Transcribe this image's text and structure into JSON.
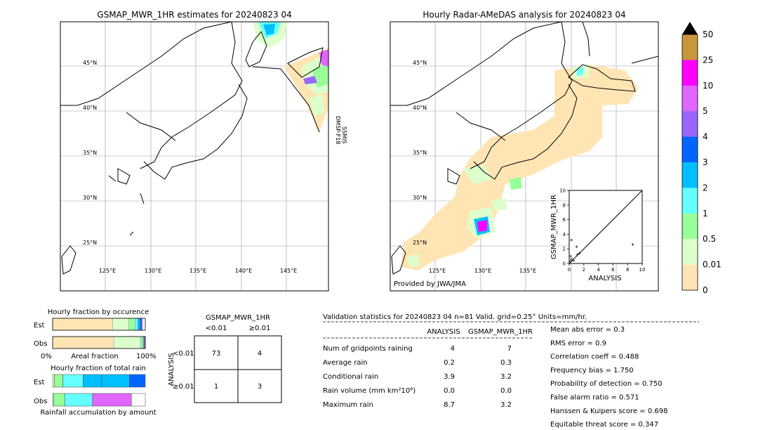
{
  "left_map": {
    "title": "GSMAP_MWR_1HR estimates for 20240823 04",
    "satellite_label_1": "DMSP-F18",
    "satellite_label_2": "SSMIS",
    "lat_labels": [
      "45°N",
      "40°N",
      "35°N",
      "30°N",
      "25°N"
    ],
    "lon_labels": [
      "125°E",
      "130°E",
      "135°E",
      "140°E",
      "145°E"
    ]
  },
  "right_map": {
    "title": "Hourly Radar-AMeDAS analysis for 20240823 04",
    "credit": "Provided by JWA/JMA",
    "lat_labels": [
      "45°N",
      "40°N",
      "35°N",
      "30°N",
      "25°N"
    ],
    "lon_labels": [
      "125°E",
      "130°E",
      "135°E"
    ]
  },
  "colorbar": {
    "labels": [
      "50",
      "25",
      "10",
      "5",
      "4",
      "3",
      "2",
      "1",
      "0.5",
      "0.01",
      "0"
    ],
    "colors": [
      "#c8963c",
      "#ff00ff",
      "#e066ff",
      "#9966ff",
      "#0066ff",
      "#00bfff",
      "#66ffff",
      "#99ff99",
      "#ddffcc",
      "#ffe5b4"
    ]
  },
  "chart_data": [
    {
      "type": "scatter",
      "title": "",
      "xlabel": "ANALYSIS",
      "ylabel": "GSMAP_MWR_1HR",
      "xlim": [
        0,
        10
      ],
      "ylim": [
        0,
        10
      ],
      "ticks": [
        "0",
        "2",
        "4",
        "6",
        "8",
        "10"
      ],
      "points": [
        [
          0.2,
          0.3
        ],
        [
          0.3,
          0.6
        ],
        [
          0.2,
          1.0
        ],
        [
          0.6,
          0.4
        ],
        [
          1.1,
          1.2
        ],
        [
          1.4,
          1.4
        ],
        [
          1.0,
          2.3
        ],
        [
          0.3,
          3.2
        ],
        [
          8.7,
          2.6
        ]
      ]
    },
    {
      "type": "bar",
      "title": "Hourly fraction by occurence",
      "rows": [
        "Est",
        "Obs"
      ],
      "xlabel": "Areal fraction",
      "x_left_label": "0%",
      "x_right_label": "100%",
      "segments": {
        "Est": [
          0.65,
          0.17,
          0.07,
          0.03,
          0.02,
          0.02,
          0.01
        ],
        "Obs": [
          0.66,
          0.29,
          0.02,
          0.01,
          0.005,
          0.005,
          0.01
        ]
      },
      "segment_colors": [
        "#ffe5b4",
        "#ddffcc",
        "#99ff99",
        "#66ffff",
        "#00bfff",
        "#0066ff",
        "#9966ff"
      ]
    },
    {
      "type": "bar",
      "title": "Hourly fraction of total rain",
      "rows": [
        "Est",
        "Obs"
      ],
      "xlabel": "Rainfall accumulation by amount",
      "segments": {
        "Est": [
          0.02,
          0.09,
          0.22,
          0.2,
          0.3,
          0.17
        ],
        "Obs": [
          0.01,
          0.12,
          0.3,
          0.42,
          0.15
        ]
      },
      "segment_colors": {
        "Est": [
          "#ddffcc",
          "#99ff99",
          "#66ffff",
          "#00bfff",
          "#00bfff",
          "#0066ff"
        ],
        "Obs": [
          "#ddffcc",
          "#99ff99",
          "#66ffff",
          "#e066ff",
          "#ffffff"
        ]
      }
    },
    {
      "type": "table",
      "title": "GSMAP_MWR_1HR",
      "col_labels": [
        "<0.01",
        "≥0.01"
      ],
      "row_labels": [
        "<0.01",
        "≥0.01"
      ],
      "side_label": "ANALYSIS",
      "cells": [
        [
          73,
          4
        ],
        [
          1,
          3
        ]
      ]
    }
  ],
  "validation": {
    "header": "Validation statistics for 20240823 04  n=81 Valid. grid=0.25° Units=mm/hr.",
    "col_analysis": "ANALYSIS",
    "col_gsmap": "GSMAP_MWR_1HR",
    "rows": [
      {
        "label": "Num of gridpoints raining",
        "analysis": "4",
        "gsmap": "7"
      },
      {
        "label": "Average rain",
        "analysis": "0.2",
        "gsmap": "0.3"
      },
      {
        "label": "Conditional rain",
        "analysis": "3.9",
        "gsmap": "3.2"
      },
      {
        "label": "Rain volume (mm km²10⁶)",
        "analysis": "0.0",
        "gsmap": "0.0"
      },
      {
        "label": "Maximum rain",
        "analysis": "8.7",
        "gsmap": "3.2"
      }
    ],
    "scores": [
      "Mean abs error =    0.3",
      "RMS error =    0.9",
      "Correlation coeff =  0.488",
      "Frequency bias =  1.750",
      "Probability of detection =  0.750",
      "False alarm ratio =  0.571",
      "Hanssen & Kuipers score =  0.698",
      "Equitable threat score =  0.347"
    ]
  }
}
